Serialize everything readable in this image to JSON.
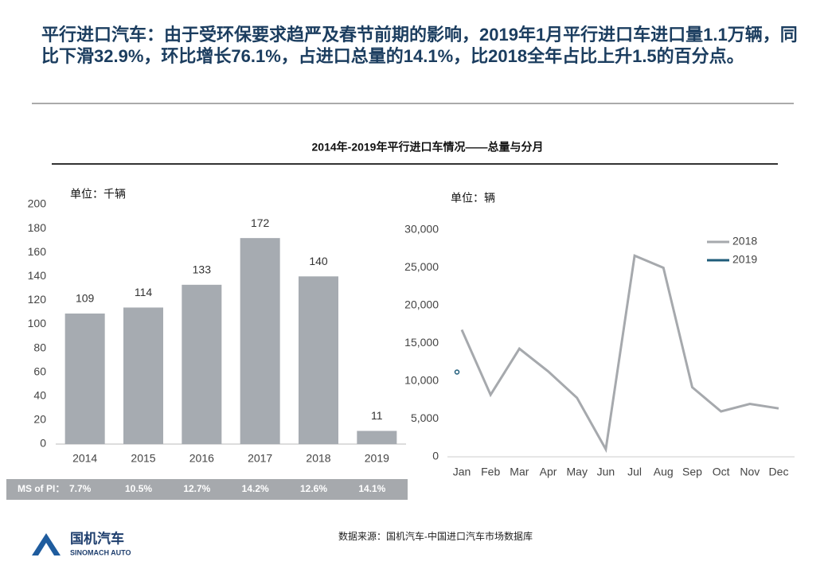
{
  "header": {
    "title": "平行进口汽车：由于受环保要求趋严及春节前期的影响，2019年1月平行进口车进口量1.1万辆，同比下滑32.9%，环比增长76.1%，占进口总量的14.1%，比2018全年占比上升1.5的百分点。"
  },
  "subtitle": "2014年-2019年平行进口车情况——总量与分月",
  "chart_data": [
    {
      "type": "bar",
      "unit": "单位：千辆",
      "categories": [
        "2014",
        "2015",
        "2016",
        "2017",
        "2018",
        "2019"
      ],
      "values": [
        109,
        114,
        133,
        172,
        140,
        11
      ],
      "color": "#a6abb1",
      "ylim": [
        0,
        200
      ],
      "yticks": [
        0,
        20,
        40,
        60,
        80,
        100,
        120,
        140,
        160,
        180,
        200
      ],
      "share_row": {
        "label": "MS of PI：",
        "values": [
          "7.7%",
          "10.5%",
          "12.7%",
          "14.2%",
          "12.6%",
          "14.1%"
        ]
      }
    },
    {
      "type": "line",
      "unit": "单位：辆",
      "categories": [
        "Jan",
        "Feb",
        "Mar",
        "Apr",
        "May",
        "Jun",
        "Jul",
        "Aug",
        "Sep",
        "Oct",
        "Nov",
        "Dec"
      ],
      "series": [
        {
          "name": "2018",
          "color": "#a6a9ad",
          "values": [
            16800,
            8200,
            14300,
            11300,
            7800,
            1000,
            26600,
            25000,
            9200,
            6000,
            7000,
            6400
          ]
        },
        {
          "name": "2019",
          "color": "#1f5c7a",
          "values": [
            11000,
            null,
            null,
            null,
            null,
            null,
            null,
            null,
            null,
            null,
            null,
            null
          ]
        }
      ],
      "ylim": [
        0,
        30000
      ],
      "yticks": [
        0,
        {
          "value": 5000,
          "label": "5,000"
        },
        {
          "value": 10000,
          "label": "10,000"
        },
        {
          "value": 15000,
          "label": "15,000"
        },
        {
          "value": 20000,
          "label": "20,000"
        },
        {
          "value": 25000,
          "label": "25,000"
        },
        {
          "value": 30000,
          "label": "30,000"
        }
      ],
      "legend": "upper right"
    }
  ],
  "source": "数据来源：国机汽车-中国进口汽车市场数据库",
  "logo": {
    "name": "国机汽车",
    "sub": "SINOMACH AUTO"
  }
}
